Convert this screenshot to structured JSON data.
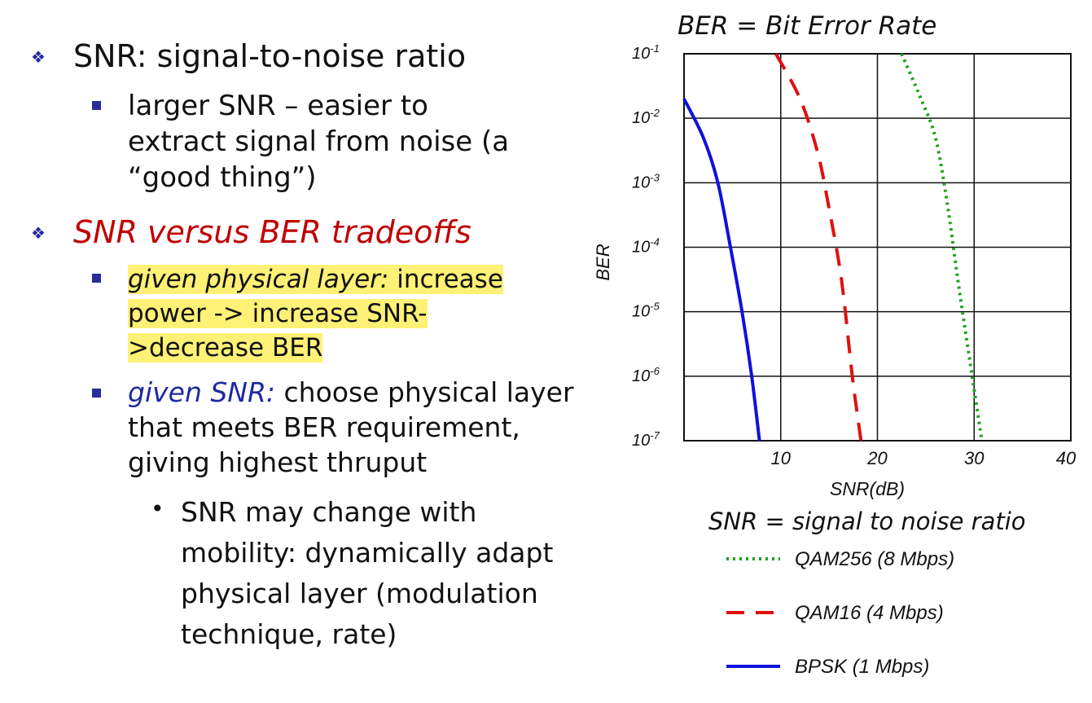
{
  "bullets": {
    "snr_label": "SNR: signal-to-noise ratio",
    "snr_sub_lines": [
      "larger SNR – easier to",
      "extract signal from noise (a",
      "“good thing”)"
    ],
    "tradeoffs_label": "SNR versus BER tradeoffs",
    "physical_prefix": "given physical layer:",
    "physical_lines": [
      " increase",
      "power -> increase SNR-",
      ">decrease BER"
    ],
    "snr_given_prefix": "given SNR:",
    "snr_given_lines": [
      " choose physical layer",
      "that meets BER requirement,",
      "giving highest thruput"
    ],
    "mobility_lines": [
      "SNR may change with",
      "mobility: dynamically adapt",
      "physical layer (modulation",
      "technique, rate)"
    ]
  },
  "colors": {
    "bullet": "#2b2b9a",
    "tradeoffs": "#c00000",
    "given_snr": "#1e2aa0",
    "highlight": "#fff176"
  },
  "chart_data": {
    "type": "line",
    "title": "BER = Bit Error Rate",
    "subtitle": "SNR = signal to noise ratio",
    "xlabel": "SNR(dB)",
    "ylabel": "BER",
    "xlim": [
      0,
      40
    ],
    "ylim": [
      1e-07,
      0.1
    ],
    "yscale": "log",
    "xticks": [
      10,
      20,
      30,
      40
    ],
    "yticks": [
      {
        "value": 0.1,
        "base": "10",
        "exp": "-1"
      },
      {
        "value": 0.01,
        "base": "10",
        "exp": "-2"
      },
      {
        "value": 0.001,
        "base": "10",
        "exp": "-3"
      },
      {
        "value": 0.0001,
        "base": "10",
        "exp": "-4"
      },
      {
        "value": 1e-05,
        "base": "10",
        "exp": "-5"
      },
      {
        "value": 1e-06,
        "base": "10",
        "exp": "-6"
      },
      {
        "value": 1e-07,
        "base": "10",
        "exp": "-7"
      }
    ],
    "grid": true,
    "legend_placement": "bottom",
    "series": [
      {
        "name": "QAM256 (8 Mbps)",
        "color": "#22a022",
        "style": "dotted",
        "points": [
          [
            22.5,
            0.1
          ],
          [
            24.5,
            0.02
          ],
          [
            26,
            0.005
          ],
          [
            27.2,
            0.0005
          ],
          [
            28.5,
            2e-05
          ],
          [
            29.8,
            1e-06
          ],
          [
            30.8,
            1e-07
          ]
        ]
      },
      {
        "name": "QAM16 (4 Mbps)",
        "color": "#e01010",
        "style": "dashed",
        "points": [
          [
            9.5,
            0.1
          ],
          [
            12,
            0.02
          ],
          [
            13.8,
            0.003
          ],
          [
            15,
            0.0004
          ],
          [
            16.3,
            3e-05
          ],
          [
            17.4,
            1e-06
          ],
          [
            18.3,
            1e-07
          ]
        ]
      },
      {
        "name": "BPSK (1 Mbps)",
        "color": "#1010e0",
        "style": "solid",
        "points": [
          [
            0,
            0.02
          ],
          [
            2,
            0.005
          ],
          [
            3.5,
            0.001
          ],
          [
            4.8,
            0.0001
          ],
          [
            6,
            1e-05
          ],
          [
            7,
            1e-06
          ],
          [
            7.8,
            1e-07
          ]
        ]
      }
    ]
  }
}
